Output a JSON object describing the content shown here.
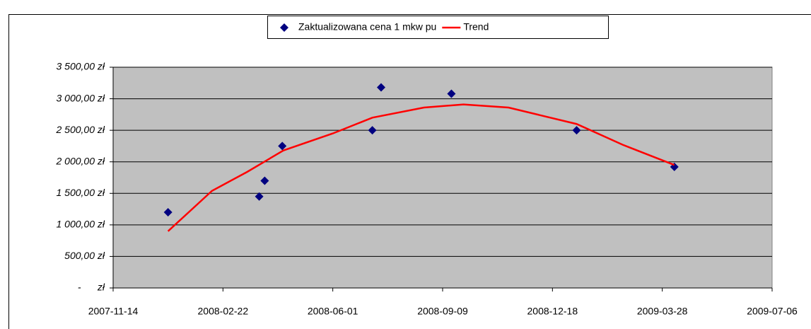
{
  "chart_data": {
    "type": "scatter",
    "series": [
      {
        "name": "Zaktualizowana cena 1 mkw pu",
        "color": "#000080",
        "x": [
          "2008-01-03",
          "2008-03-26",
          "2008-03-31",
          "2008-04-16",
          "2008-07-07",
          "2008-07-15",
          "2008-09-17",
          "2009-01-09",
          "2009-04-08"
        ],
        "values": [
          1200,
          1450,
          1700,
          2250,
          2500,
          3180,
          3080,
          2500,
          1920
        ]
      },
      {
        "name": "Trend",
        "color": "#ff0000",
        "type": "line",
        "x": [
          "2008-01-03",
          "2008-02-12",
          "2008-03-15",
          "2008-04-17",
          "2008-06-01",
          "2008-07-07",
          "2008-08-23",
          "2008-09-28",
          "2008-11-08",
          "2009-01-09",
          "2009-02-20",
          "2009-04-08"
        ],
        "values": [
          900,
          1540,
          1840,
          2180,
          2450,
          2700,
          2860,
          2910,
          2860,
          2600,
          2270,
          1950
        ]
      }
    ],
    "xlim": [
      "2007-11-14",
      "2009-07-06"
    ],
    "xticks": [
      "2007-11-14",
      "2008-02-22",
      "2008-06-01",
      "2008-09-09",
      "2008-12-18",
      "2009-03-28",
      "2009-07-06"
    ],
    "ylim": [
      0,
      3500
    ],
    "yticks": [
      {
        "value": 0,
        "label": "-      zł"
      },
      {
        "value": 500,
        "label": "500,00 zł"
      },
      {
        "value": 1000,
        "label": "1 000,00 zł"
      },
      {
        "value": 1500,
        "label": "1 500,00 zł"
      },
      {
        "value": 2000,
        "label": "2 000,00 zł"
      },
      {
        "value": 2500,
        "label": "2 500,00 zł"
      },
      {
        "value": 3000,
        "label": "3 000,00 zł"
      },
      {
        "value": 3500,
        "label": "3 500,00 zł"
      }
    ],
    "grid": true,
    "legend": "top",
    "plot_background": "#c0c0c0"
  }
}
